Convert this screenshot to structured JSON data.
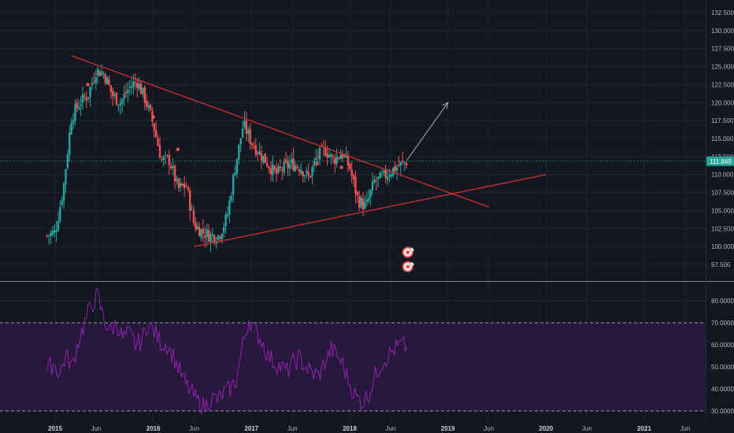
{
  "colors": {
    "background": "#131722",
    "grid": "#1f2230",
    "separator": "#7f8290",
    "axis_text": "#b2b5be",
    "candle_up": "#26a69a",
    "candle_down": "#ef5350",
    "trendline": "#d32f2f",
    "projection_arrow": "#9598a1",
    "current_price_line": "#26a69a",
    "price_tag": "#26a69a",
    "rsi_line": "#8e24aa",
    "rsi_band_fill": "#2a1840",
    "rsi_band_border": "#9598a1",
    "event_marker": "#ef5350"
  },
  "chart_data": [
    {
      "type": "candlestick",
      "panel": "price",
      "title": "",
      "x_tick_labels": [
        "2015",
        "Jun",
        "2016",
        "Jun",
        "2017",
        "Jun",
        "2018",
        "Jun",
        "2019",
        "Jun",
        "2020",
        "Jun",
        "2021",
        "Jun"
      ],
      "x_ticks": [
        "2015-01",
        "2015-06",
        "2016-01",
        "2016-06",
        "2017-01",
        "2017-06",
        "2018-01",
        "2018-06",
        "2019-01",
        "2019-06",
        "2020-01",
        "2020-06",
        "2021-01",
        "2021-06"
      ],
      "y_tick_labels": [
        "132.500",
        "130.000",
        "127.500",
        "125.000",
        "122.500",
        "120.000",
        "117.500",
        "115.000",
        "112.500",
        "110.000",
        "107.500",
        "105.000",
        "102.500",
        "100.000",
        "97.500"
      ],
      "y_ticks": [
        132.5,
        130,
        127.5,
        125,
        122.5,
        120,
        117.5,
        115,
        112.5,
        110,
        107.5,
        105,
        102.5,
        100,
        97.5
      ],
      "ylim": [
        95.5,
        134
      ],
      "current_price": 111.849,
      "current_price_label": "111.849",
      "grid": true,
      "close_path": [
        [
          "2014-12",
          101.5
        ],
        [
          "2015-01",
          102
        ],
        [
          "2015-02",
          108
        ],
        [
          "2015-03",
          118
        ],
        [
          "2015-04",
          120
        ],
        [
          "2015-05",
          121
        ],
        [
          "2015-06",
          124.5
        ],
        [
          "2015-07",
          124
        ],
        [
          "2015-08",
          121
        ],
        [
          "2015-09",
          120
        ],
        [
          "2015-10",
          122
        ],
        [
          "2015-11",
          123
        ],
        [
          "2015-12",
          120.5
        ],
        [
          "2016-01",
          117
        ],
        [
          "2016-02",
          112
        ],
        [
          "2016-03",
          112
        ],
        [
          "2016-04",
          108
        ],
        [
          "2016-05",
          108.5
        ],
        [
          "2016-06",
          103
        ],
        [
          "2016-07",
          102
        ],
        [
          "2016-08",
          101.5
        ],
        [
          "2016-09",
          101.5
        ],
        [
          "2016-10",
          104
        ],
        [
          "2016-11",
          111
        ],
        [
          "2016-12",
          117
        ],
        [
          "2017-01",
          114.5
        ],
        [
          "2017-02",
          113
        ],
        [
          "2017-03",
          111.5
        ],
        [
          "2017-04",
          110
        ],
        [
          "2017-05",
          111
        ],
        [
          "2017-06",
          111.5
        ],
        [
          "2017-07",
          111
        ],
        [
          "2017-08",
          109.5
        ],
        [
          "2017-09",
          112.5
        ],
        [
          "2017-10",
          113.5
        ],
        [
          "2017-11",
          112
        ],
        [
          "2017-12",
          113
        ],
        [
          "2018-01",
          111
        ],
        [
          "2018-02",
          106.5
        ],
        [
          "2018-03",
          105.5
        ],
        [
          "2018-04",
          109
        ],
        [
          "2018-05",
          109.5
        ],
        [
          "2018-06",
          110.5
        ],
        [
          "2018-07",
          111.2
        ],
        [
          "2018-08",
          111.849
        ]
      ],
      "trendlines": [
        {
          "name": "descending-resistance",
          "from": [
            "2015-03",
            126.5
          ],
          "to": [
            "2019-06",
            105.5
          ]
        },
        {
          "name": "ascending-support",
          "from": [
            "2016-06",
            100
          ],
          "to": [
            "2020-01",
            110
          ]
        }
      ],
      "projection_arrow": {
        "from": [
          "2018-08",
          112
        ],
        "to": [
          "2019-01",
          120
        ]
      },
      "event_markers_count": 2
    },
    {
      "type": "line",
      "panel": "rsi",
      "title": "",
      "y_tick_labels": [
        "80.0000",
        "70.0000",
        "60.0000",
        "50.0000",
        "40.0000",
        "30.0000"
      ],
      "y_ticks": [
        80,
        70,
        60,
        50,
        40,
        30
      ],
      "ylim": [
        28,
        86
      ],
      "band": [
        30,
        70
      ],
      "series": [
        {
          "values": [
            48,
            52,
            47,
            55,
            50,
            62,
            70,
            78,
            82,
            72,
            66,
            70,
            63,
            65,
            60,
            62,
            70,
            66,
            61,
            60,
            55,
            48,
            42,
            38,
            34,
            32,
            36,
            35,
            38,
            40,
            44,
            60,
            72,
            66,
            62,
            55,
            52,
            50,
            48,
            52,
            54,
            50,
            47,
            46,
            52,
            58,
            55,
            50,
            42,
            36,
            34,
            38,
            46,
            52,
            55,
            58,
            60,
            59
          ]
        }
      ]
    }
  ]
}
